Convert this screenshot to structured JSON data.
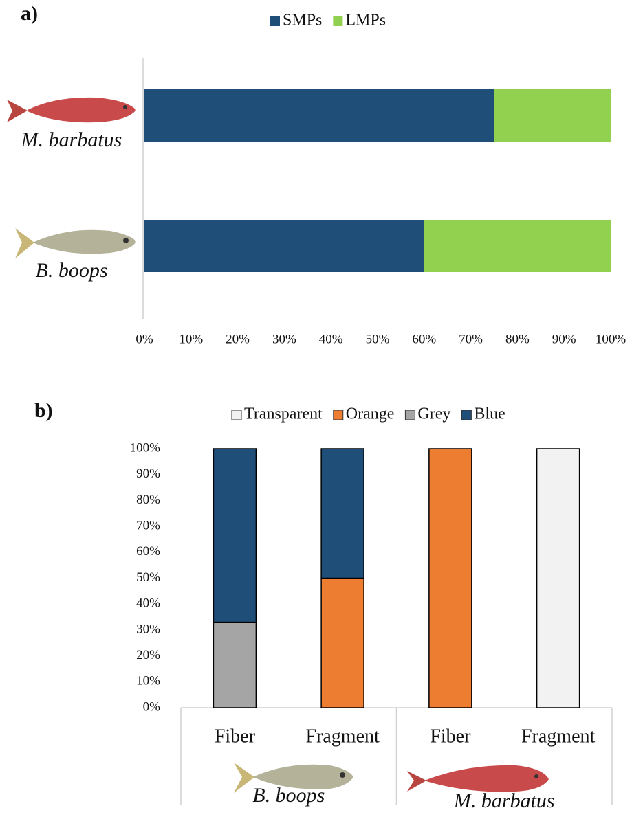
{
  "chart_data": [
    {
      "type": "barh",
      "label": "a)",
      "categories": [
        "M. barbatus",
        "B. boops"
      ],
      "series": [
        {
          "name": "SMPs",
          "color": "#1f4e79",
          "values": [
            75,
            60
          ]
        },
        {
          "name": "LMPs",
          "color": "#92d050",
          "values": [
            25,
            40
          ]
        }
      ],
      "xlim": [
        0,
        100
      ],
      "xticks": [
        {
          "value": 0,
          "label": "0%"
        },
        {
          "value": 10,
          "label": "10%"
        },
        {
          "value": 20,
          "label": "20%"
        },
        {
          "value": 30,
          "label": "30%"
        },
        {
          "value": 40,
          "label": "40%"
        },
        {
          "value": 50,
          "label": "50%"
        },
        {
          "value": 60,
          "label": "60%"
        },
        {
          "value": 70,
          "label": "70%"
        },
        {
          "value": 80,
          "label": "80%"
        },
        {
          "value": 90,
          "label": "90%"
        },
        {
          "value": 100,
          "label": "100%"
        }
      ],
      "stacked": true,
      "legend": "top",
      "grid": false
    },
    {
      "type": "bar",
      "label": "b)",
      "groups": [
        {
          "name": "B. boops",
          "categories": [
            "Fiber",
            "Fragment"
          ]
        },
        {
          "name": "M. barbatus",
          "categories": [
            "Fiber",
            "Fragment"
          ]
        }
      ],
      "series": [
        {
          "name": "Transparent",
          "color": "#f2f2f2",
          "values": [
            0,
            0,
            0,
            100
          ]
        },
        {
          "name": "Orange",
          "color": "#ed7d31",
          "values": [
            0,
            50,
            100,
            0
          ]
        },
        {
          "name": "Grey",
          "color": "#a5a5a5",
          "values": [
            33,
            0,
            0,
            0
          ]
        },
        {
          "name": "Blue",
          "color": "#1f4e79",
          "values": [
            67,
            50,
            0,
            0
          ]
        }
      ],
      "ylim": [
        0,
        100
      ],
      "yticks": [
        {
          "value": 0,
          "label": "0%"
        },
        {
          "value": 10,
          "label": "10%"
        },
        {
          "value": 20,
          "label": "20%"
        },
        {
          "value": 30,
          "label": "30%"
        },
        {
          "value": 40,
          "label": "40%"
        },
        {
          "value": 50,
          "label": "50%"
        },
        {
          "value": 60,
          "label": "60%"
        },
        {
          "value": 70,
          "label": "70%"
        },
        {
          "value": 80,
          "label": "80%"
        },
        {
          "value": 90,
          "label": "90%"
        },
        {
          "value": 100,
          "label": "100%"
        }
      ],
      "stacked": true,
      "legend": "top",
      "grid": false
    }
  ]
}
